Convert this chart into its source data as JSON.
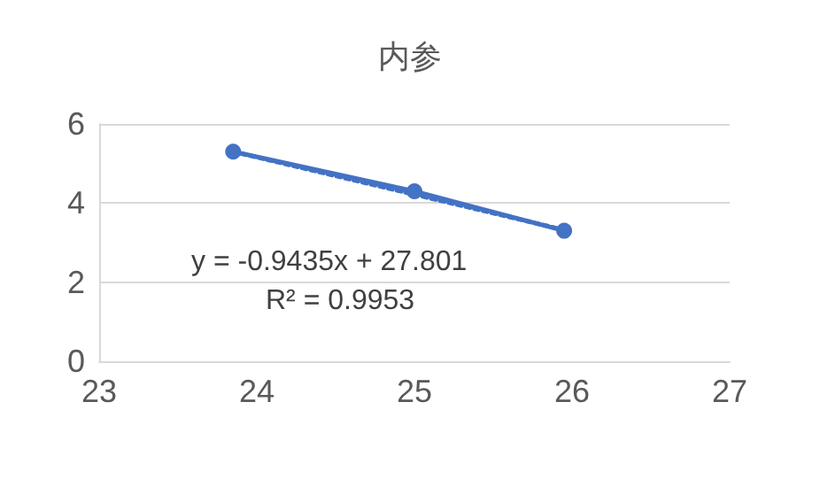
{
  "chart_data": {
    "type": "line",
    "title": "内参",
    "xlim": [
      23,
      27
    ],
    "xticks": [
      23,
      24,
      25,
      26,
      27
    ],
    "ylim": [
      0,
      6
    ],
    "yticks": [
      0,
      2,
      4,
      6
    ],
    "grid": "y",
    "line_style": "solid",
    "series": [
      {
        "color": "#4472c4",
        "x": [
          23.85,
          25.0,
          25.95
        ],
        "values": [
          5.3,
          4.3,
          3.3
        ],
        "marker": "circle"
      },
      {
        "color": "#4472c4",
        "x": [
          23.85,
          25.95
        ],
        "values": [
          5.3,
          3.32
        ],
        "line_style": "dotted"
      }
    ],
    "annotations": [
      "y = -0.9435x + 27.801",
      "R² = 0.9953"
    ]
  }
}
